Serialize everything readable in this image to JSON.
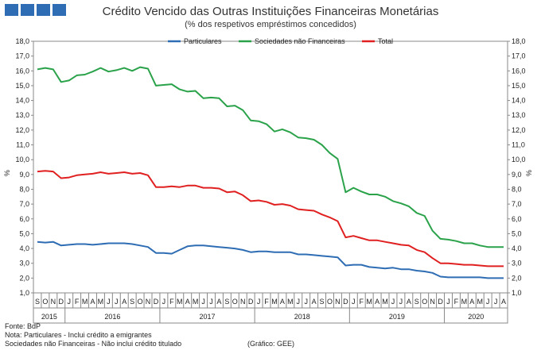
{
  "header": {
    "title": "Crédito Vencido das Outras Instituições Financeiras Monetárias",
    "subtitle": "(% dos respetivos empréstimos concedidos)"
  },
  "footer": {
    "source": "Fonte: BdP",
    "note1": "Nota: Particulares - Inclui crédito a emigrantes",
    "note2": "Sociedades não Financeiras - Não inclui crédito titulado",
    "credit": "(Gráfico: GEE)"
  },
  "chart_data": {
    "type": "line",
    "title": "Crédito Vencido das Outras Instituições Financeiras Monetárias",
    "subtitle": "(% dos respetivos empréstimos concedidos)",
    "xlabel": "",
    "ylabel": "%",
    "ylim": [
      1.0,
      18.0
    ],
    "yticks": [
      "1,0",
      "2,0",
      "3,0",
      "4,0",
      "5,0",
      "6,0",
      "7,0",
      "8,0",
      "9,0",
      "10,0",
      "11,0",
      "12,0",
      "13,0",
      "14,0",
      "15,0",
      "16,0",
      "17,0",
      "18,0"
    ],
    "grid": false,
    "legend": "top",
    "categories": [
      "S",
      "O",
      "N",
      "D",
      "J",
      "F",
      "M",
      "A",
      "M",
      "J",
      "J",
      "A",
      "S",
      "O",
      "N",
      "D",
      "J",
      "F",
      "M",
      "A",
      "M",
      "J",
      "J",
      "A",
      "S",
      "O",
      "N",
      "D",
      "J",
      "F",
      "M",
      "A",
      "M",
      "J",
      "J",
      "A",
      "S",
      "O",
      "N",
      "D",
      "J",
      "F",
      "M",
      "A",
      "M",
      "J",
      "J",
      "A",
      "S",
      "O",
      "N",
      "D",
      "J",
      "F",
      "M",
      "A",
      "M",
      "J",
      "J",
      "A"
    ],
    "year_labels": [
      {
        "label": "2015",
        "start": 0,
        "end": 3
      },
      {
        "label": "2016",
        "start": 4,
        "end": 15
      },
      {
        "label": "2017",
        "start": 16,
        "end": 27
      },
      {
        "label": "2018",
        "start": 28,
        "end": 39
      },
      {
        "label": "2019",
        "start": 40,
        "end": 51
      },
      {
        "label": "2020",
        "start": 52,
        "end": 59
      }
    ],
    "series": [
      {
        "name": "Particulares",
        "color": "#2e6db4",
        "values": [
          4.45,
          4.4,
          4.45,
          4.2,
          4.25,
          4.3,
          4.3,
          4.25,
          4.3,
          4.35,
          4.35,
          4.35,
          4.3,
          4.2,
          4.1,
          3.7,
          3.7,
          3.65,
          3.9,
          4.15,
          4.2,
          4.2,
          4.15,
          4.1,
          4.05,
          4.0,
          3.9,
          3.75,
          3.8,
          3.8,
          3.75,
          3.75,
          3.75,
          3.6,
          3.6,
          3.55,
          3.5,
          3.45,
          3.4,
          2.85,
          2.9,
          2.9,
          2.75,
          2.7,
          2.65,
          2.7,
          2.6,
          2.6,
          2.5,
          2.45,
          2.35,
          2.1,
          2.05,
          2.05,
          2.05,
          2.05,
          2.05,
          2.0,
          2.0,
          2.0
        ]
      },
      {
        "name": "Sociedades não Financeiras",
        "color": "#2aa24a",
        "values": [
          16.1,
          16.2,
          16.1,
          15.25,
          15.35,
          15.7,
          15.75,
          15.95,
          16.2,
          15.95,
          16.05,
          16.2,
          16.0,
          16.25,
          16.15,
          15.0,
          15.05,
          15.1,
          14.75,
          14.6,
          14.65,
          14.15,
          14.2,
          14.15,
          13.6,
          13.65,
          13.35,
          12.65,
          12.6,
          12.4,
          11.9,
          12.05,
          11.85,
          11.5,
          11.45,
          11.35,
          11.0,
          10.45,
          10.05,
          7.8,
          8.1,
          7.85,
          7.65,
          7.65,
          7.5,
          7.2,
          7.05,
          6.85,
          6.4,
          6.2,
          5.2,
          4.65,
          4.6,
          4.5,
          4.35,
          4.35,
          4.2,
          4.1,
          4.1,
          4.1
        ]
      },
      {
        "name": "Total",
        "color": "#e02020",
        "values": [
          9.2,
          9.25,
          9.2,
          8.75,
          8.8,
          8.95,
          9.0,
          9.05,
          9.15,
          9.05,
          9.1,
          9.15,
          9.05,
          9.1,
          8.95,
          8.15,
          8.15,
          8.2,
          8.15,
          8.25,
          8.25,
          8.1,
          8.1,
          8.05,
          7.8,
          7.85,
          7.6,
          7.2,
          7.25,
          7.15,
          6.95,
          7.0,
          6.9,
          6.65,
          6.6,
          6.55,
          6.3,
          6.1,
          5.85,
          4.75,
          4.85,
          4.7,
          4.55,
          4.55,
          4.45,
          4.35,
          4.25,
          4.2,
          3.9,
          3.75,
          3.35,
          3.0,
          3.0,
          2.95,
          2.9,
          2.9,
          2.85,
          2.8,
          2.8,
          2.8
        ]
      }
    ]
  }
}
